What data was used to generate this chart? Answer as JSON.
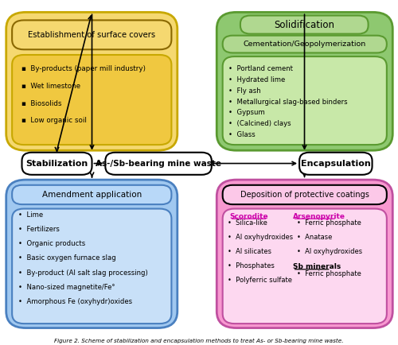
{
  "bg_color": "#ffffff",
  "top_left": {
    "outer_bg": "#f5d870",
    "outer_border": "#c8a800",
    "title_border": "#8a6800",
    "inner_bg": "#f0c840",
    "inner_border": "#c8a800",
    "title": "Establishment of surface covers",
    "items": [
      "By-products (paper mill industry)",
      "Wet limestone",
      "Biosolids",
      "Low organic soil"
    ],
    "bullet": "▪"
  },
  "top_right": {
    "outer_bg": "#8ec870",
    "outer_border": "#5a9a30",
    "label_bg": "#b0d890",
    "label_border": "#5a9a30",
    "inner_bg": "#c8e8a8",
    "inner_border": "#5a9a30",
    "outer_title": "Solidification",
    "inner_title": "Cementation/Geopolymerization",
    "items": [
      "Portland cement",
      "Hydrated lime",
      "Fly ash",
      "Metallurgical slag-based binders",
      "Gypsum",
      "(Calcined) clays",
      "Glass"
    ],
    "bullet": "•"
  },
  "bottom_left": {
    "outer_bg": "#a0c8f0",
    "outer_border": "#4a80c0",
    "header_bg": "#b8d8f8",
    "header_border": "#4a80c0",
    "inner_bg": "#c8e0f8",
    "inner_border": "#4a80c0",
    "title": "Amendment application",
    "items": [
      "Lime",
      "Fertilizers",
      "Organic products",
      "Basic oxygen furnace slag",
      "By-product (Al salt slag processing)",
      "Nano-sized magnetite/Fe°",
      "Amorphous Fe (oxyhydr)oxides"
    ],
    "bullet": "•"
  },
  "bottom_right": {
    "outer_bg": "#f898d0",
    "outer_border": "#c050a0",
    "header_bg": "#fcc8e8",
    "header_border": "#000000",
    "inner_bg": "#fdd8f0",
    "inner_border": "#c050a0",
    "title": "Deposition of protective coatings",
    "scorodite_title": "Scorodite",
    "scorodite_color": "#cc00aa",
    "scorodite_items": [
      "Silica-like",
      "Al oxyhydroxides",
      "Al silicates",
      "Phosphates",
      "Polyferric sulfate"
    ],
    "arsenopyrite_title": "Arsenopyrite",
    "arsenopyrite_color": "#cc00aa",
    "arsenopyrite_items": [
      "Ferric phosphate",
      "Anatase",
      "Al oxyhydroxides"
    ],
    "sb_title": "Sb minerals",
    "sb_color": "#000000",
    "sb_items": [
      "Ferric phosphate"
    ],
    "bullet": "•"
  },
  "center": {
    "stab_label": "Stabilization",
    "mw_label": "As-/Sb-bearing mine waste",
    "enc_label": "Encapsulation"
  },
  "figure_caption": "Figure 2. Scheme of stabilization and encapsulation methods to treat As- or Sb-bearing mine waste."
}
